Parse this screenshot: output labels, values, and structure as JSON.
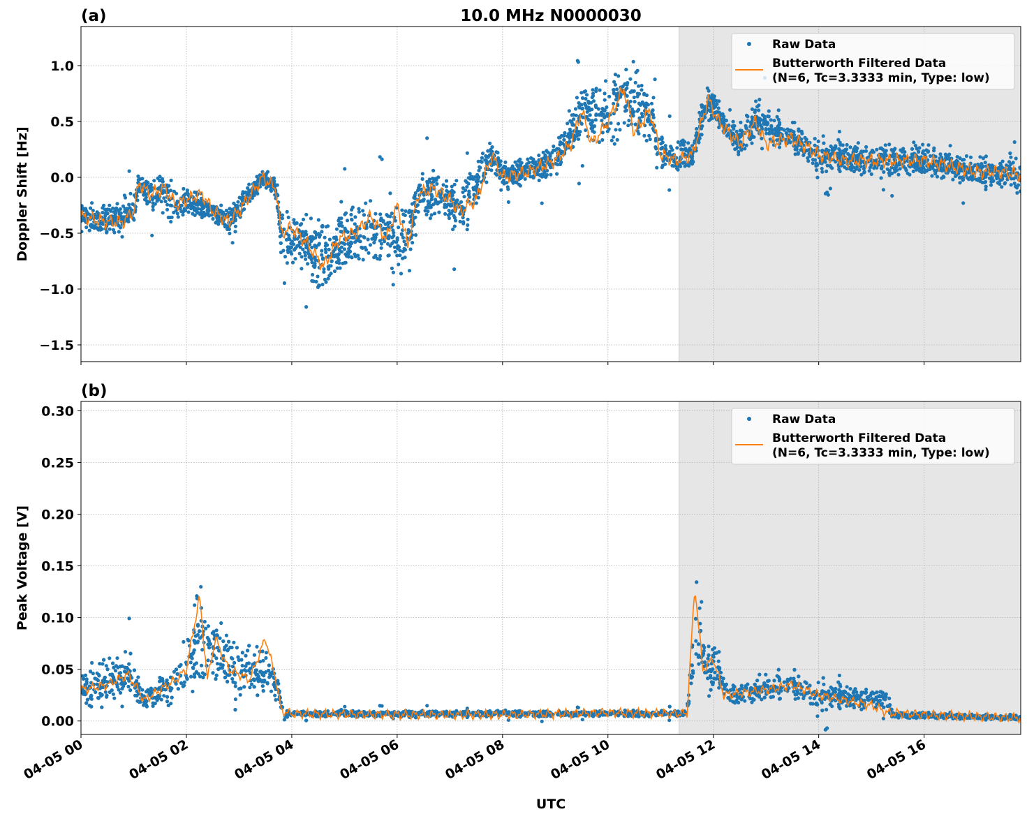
{
  "chart_data": [
    {
      "type": "scatter",
      "panel_label": "(a)",
      "title": "10.0 MHz N0000030",
      "xlabel": "",
      "ylabel": "Doppler Shift [Hz]",
      "date": "04-05",
      "xlim": [
        "00:00",
        "17:50"
      ],
      "ylim": [
        -1.65,
        1.35
      ],
      "yticks": [
        1.0,
        0.5,
        0.0,
        -0.5,
        -1.0,
        -1.5
      ],
      "ytick_labels": [
        "1.0",
        "0.5",
        "0.0",
        "−0.5",
        "−1.0",
        "−1.5"
      ],
      "grid": true,
      "legend_placement": "top-right",
      "shaded_region": {
        "start": "11:21",
        "end": "17:50",
        "color": "#e6e6e6"
      },
      "series": [
        {
          "name": "Raw Data",
          "kind": "points",
          "color": "#1f77b4",
          "band_time_center_spread": [
            [
              "00:00",
              -0.35,
              0.15
            ],
            [
              "00:30",
              -0.4,
              0.18
            ],
            [
              "01:00",
              -0.3,
              0.2
            ],
            [
              "01:06",
              -0.05,
              0.15
            ],
            [
              "01:18",
              -0.15,
              0.2
            ],
            [
              "01:36",
              -0.1,
              0.25
            ],
            [
              "01:48",
              -0.25,
              0.35
            ],
            [
              "02:00",
              -0.2,
              0.15
            ],
            [
              "02:30",
              -0.3,
              0.15
            ],
            [
              "02:48",
              -0.4,
              0.15
            ],
            [
              "03:18",
              -0.1,
              0.12
            ],
            [
              "03:27",
              0.0,
              0.1
            ],
            [
              "03:42",
              -0.1,
              0.15
            ],
            [
              "03:48",
              -0.5,
              0.3
            ],
            [
              "04:18",
              -0.6,
              0.35
            ],
            [
              "04:36",
              -0.75,
              0.45
            ],
            [
              "05:12",
              -0.5,
              0.35
            ],
            [
              "05:48",
              -0.5,
              0.35
            ],
            [
              "06:12",
              -0.6,
              0.4
            ],
            [
              "06:24",
              -0.15,
              0.25
            ],
            [
              "07:00",
              -0.2,
              0.3
            ],
            [
              "07:12",
              -0.3,
              0.35
            ],
            [
              "07:48",
              0.2,
              0.2
            ],
            [
              "08:00",
              0.0,
              0.15
            ],
            [
              "09:00",
              0.15,
              0.2
            ],
            [
              "09:30",
              0.6,
              0.35
            ],
            [
              "10:00",
              0.5,
              0.4
            ],
            [
              "10:18",
              0.75,
              0.45
            ],
            [
              "10:48",
              0.6,
              0.35
            ],
            [
              "11:00",
              0.2,
              0.2
            ],
            [
              "11:36",
              0.2,
              0.2
            ],
            [
              "11:54",
              0.7,
              0.2
            ],
            [
              "12:30",
              0.3,
              0.2
            ],
            [
              "12:48",
              0.5,
              0.25
            ],
            [
              "13:30",
              0.35,
              0.2
            ],
            [
              "14:00",
              0.2,
              0.18
            ],
            [
              "15:00",
              0.15,
              0.18
            ],
            [
              "16:00",
              0.15,
              0.18
            ],
            [
              "17:00",
              0.05,
              0.18
            ],
            [
              "17:50",
              0.02,
              0.2
            ]
          ]
        },
        {
          "name": "Butterworth Filtered Data\n(N=6, Tc=3.3333 min, Type: low)",
          "kind": "line",
          "color": "#ff7f0e",
          "points": [
            [
              "00:00",
              -0.35
            ],
            [
              "00:30",
              -0.4
            ],
            [
              "00:48",
              -0.4
            ],
            [
              "01:00",
              -0.3
            ],
            [
              "01:06",
              -0.05
            ],
            [
              "01:18",
              -0.15
            ],
            [
              "01:36",
              -0.1
            ],
            [
              "01:48",
              -0.25
            ],
            [
              "02:00",
              -0.2
            ],
            [
              "02:18",
              -0.15
            ],
            [
              "02:30",
              -0.3
            ],
            [
              "02:48",
              -0.4
            ],
            [
              "03:00",
              -0.3
            ],
            [
              "03:18",
              -0.1
            ],
            [
              "03:27",
              0.0
            ],
            [
              "03:42",
              -0.1
            ],
            [
              "03:48",
              -0.5
            ],
            [
              "04:00",
              -0.45
            ],
            [
              "04:18",
              -0.6
            ],
            [
              "04:36",
              -0.8
            ],
            [
              "04:54",
              -0.55
            ],
            [
              "05:12",
              -0.5
            ],
            [
              "05:30",
              -0.35
            ],
            [
              "05:48",
              -0.55
            ],
            [
              "06:00",
              -0.25
            ],
            [
              "06:12",
              -0.6
            ],
            [
              "06:24",
              -0.15
            ],
            [
              "06:42",
              -0.1
            ],
            [
              "07:00",
              -0.2
            ],
            [
              "07:12",
              -0.3
            ],
            [
              "07:30",
              -0.2
            ],
            [
              "07:48",
              0.2
            ],
            [
              "08:00",
              0.0
            ],
            [
              "08:30",
              0.05
            ],
            [
              "09:00",
              0.15
            ],
            [
              "09:18",
              0.3
            ],
            [
              "09:30",
              0.6
            ],
            [
              "09:42",
              0.3
            ],
            [
              "10:00",
              0.5
            ],
            [
              "10:18",
              0.8
            ],
            [
              "10:30",
              0.4
            ],
            [
              "10:48",
              0.6
            ],
            [
              "11:00",
              0.2
            ],
            [
              "11:18",
              0.15
            ],
            [
              "11:36",
              0.2
            ],
            [
              "11:54",
              0.7
            ],
            [
              "12:06",
              0.5
            ],
            [
              "12:30",
              0.3
            ],
            [
              "12:48",
              0.5
            ],
            [
              "13:00",
              0.3
            ],
            [
              "13:30",
              0.35
            ],
            [
              "14:00",
              0.2
            ],
            [
              "14:30",
              0.15
            ],
            [
              "15:00",
              0.15
            ],
            [
              "15:30",
              0.15
            ],
            [
              "16:00",
              0.15
            ],
            [
              "16:30",
              0.1
            ],
            [
              "17:00",
              0.05
            ],
            [
              "17:30",
              0.05
            ],
            [
              "17:50",
              0.02
            ]
          ]
        }
      ]
    },
    {
      "type": "scatter",
      "panel_label": "(b)",
      "title": "",
      "xlabel": "UTC",
      "ylabel": "Peak Voltage [V]",
      "date": "04-05",
      "xlim": [
        "00:00",
        "17:50"
      ],
      "ylim": [
        -0.013,
        0.309
      ],
      "yticks": [
        0.0,
        0.05,
        0.1,
        0.15,
        0.2,
        0.25,
        0.3
      ],
      "ytick_labels": [
        "0.00",
        "0.05",
        "0.10",
        "0.15",
        "0.20",
        "0.25",
        "0.30"
      ],
      "xticks": [
        "00:00",
        "02:00",
        "04:00",
        "06:00",
        "08:00",
        "10:00",
        "12:00",
        "14:00",
        "16:00"
      ],
      "xtick_labels": [
        "04-05 00",
        "04-05 02",
        "04-05 04",
        "04-05 06",
        "04-05 08",
        "04-05 10",
        "04-05 12",
        "04-05 14",
        "04-05 16"
      ],
      "grid": true,
      "legend_placement": "top-right",
      "shaded_region": {
        "start": "11:21",
        "end": "17:50",
        "color": "#e6e6e6"
      },
      "series": [
        {
          "name": "Raw Data",
          "kind": "points",
          "color": "#1f77b4",
          "band_time_center_spread": [
            [
              "00:00",
              0.03,
              0.025
            ],
            [
              "00:54",
              0.045,
              0.03
            ],
            [
              "01:12",
              0.02,
              0.015
            ],
            [
              "01:48",
              0.04,
              0.03
            ],
            [
              "02:15",
              0.08,
              0.07
            ],
            [
              "02:33",
              0.07,
              0.05
            ],
            [
              "03:00",
              0.045,
              0.03
            ],
            [
              "03:30",
              0.05,
              0.035
            ],
            [
              "03:45",
              0.03,
              0.02
            ],
            [
              "03:50",
              0.007,
              0.004
            ],
            [
              "11:30",
              0.007,
              0.004
            ],
            [
              "11:40",
              0.1,
              0.08
            ],
            [
              "11:50",
              0.06,
              0.04
            ],
            [
              "12:06",
              0.05,
              0.03
            ],
            [
              "12:18",
              0.025,
              0.015
            ],
            [
              "13:30",
              0.035,
              0.02
            ],
            [
              "14:00",
              0.025,
              0.018
            ],
            [
              "15:18",
              0.02,
              0.012
            ],
            [
              "15:24",
              0.006,
              0.004
            ],
            [
              "17:50",
              0.003,
              0.003
            ]
          ]
        },
        {
          "name": "Butterworth Filtered Data\n(N=6, Tc=3.3333 min, Type: low)",
          "kind": "line",
          "color": "#ff7f0e",
          "points": [
            [
              "00:00",
              0.03
            ],
            [
              "00:30",
              0.035
            ],
            [
              "00:54",
              0.045
            ],
            [
              "01:12",
              0.02
            ],
            [
              "01:30",
              0.03
            ],
            [
              "01:48",
              0.04
            ],
            [
              "02:00",
              0.05
            ],
            [
              "02:15",
              0.12
            ],
            [
              "02:24",
              0.04
            ],
            [
              "02:33",
              0.08
            ],
            [
              "02:48",
              0.05
            ],
            [
              "03:12",
              0.04
            ],
            [
              "03:30",
              0.08
            ],
            [
              "03:42",
              0.04
            ],
            [
              "03:48",
              0.01
            ],
            [
              "04:00",
              0.007
            ],
            [
              "06:00",
              0.006
            ],
            [
              "08:00",
              0.006
            ],
            [
              "10:00",
              0.008
            ],
            [
              "11:30",
              0.007
            ],
            [
              "11:39",
              0.13
            ],
            [
              "11:48",
              0.05
            ],
            [
              "12:00",
              0.06
            ],
            [
              "12:12",
              0.025
            ],
            [
              "13:00",
              0.03
            ],
            [
              "13:30",
              0.035
            ],
            [
              "14:00",
              0.025
            ],
            [
              "15:00",
              0.015
            ],
            [
              "15:18",
              0.008
            ],
            [
              "16:00",
              0.006
            ],
            [
              "17:50",
              0.003
            ]
          ]
        }
      ]
    }
  ],
  "legend": {
    "raw": "Raw Data",
    "filtered_line1": "Butterworth Filtered Data",
    "filtered_line2": "(N=6, Tc=3.3333 min, Type: low)"
  }
}
